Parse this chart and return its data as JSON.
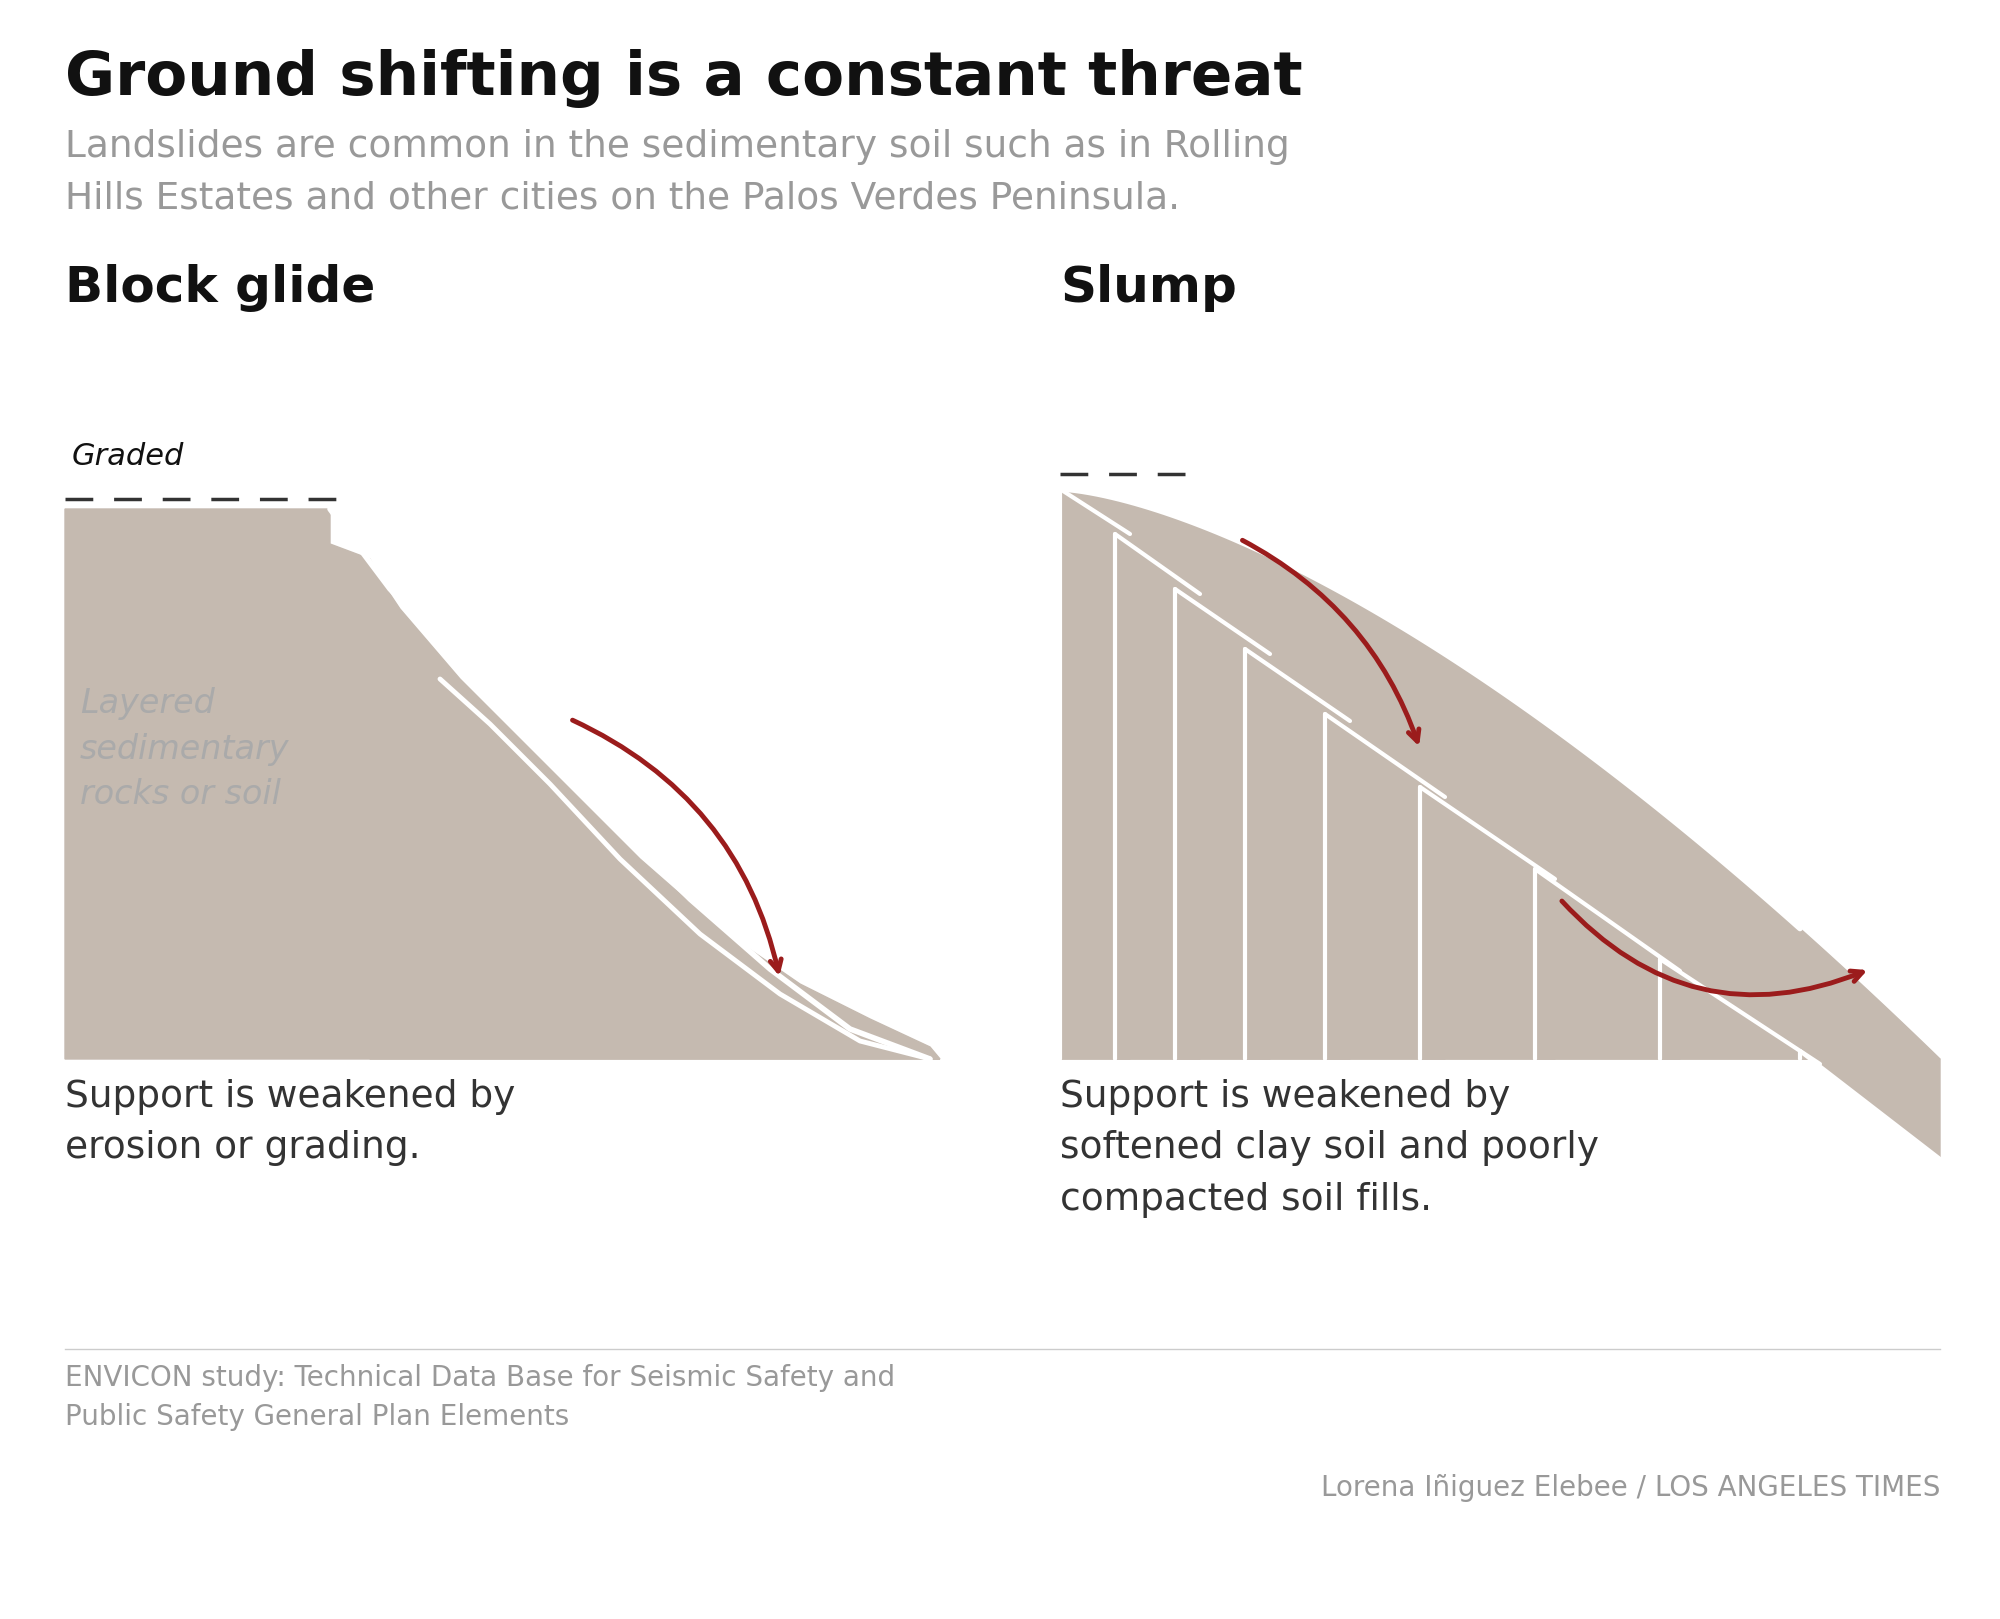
{
  "title": "Ground shifting is a constant threat",
  "subtitle": "Landslides are common in the sedimentary soil such as in Rolling\nHills Estates and other cities on the Palos Verdes Peninsula.",
  "bg_color": "#ffffff",
  "terrain_color": "#c5bab0",
  "arrow_color": "#9b1c1c",
  "white_line_color": "#ffffff",
  "dashed_line_color": "#333333",
  "block_glide_label": "Block glide",
  "slump_label": "Slump",
  "graded_label": "Graded",
  "layered_label": "Layered\nsedimentary\nrocks or soil",
  "block_glide_caption": "Support is weakened by\nerosion or grading.",
  "slump_caption": "Support is weakened by\nsoftened clay soil and poorly\ncompacted soil fills.",
  "source_text": "ENVICON study: Technical Data Base for Seismic Safety and\nPublic Safety General Plan Elements",
  "credit_text": "Lorena Iñiguez Elebee / LOS ANGELES TIMES",
  "title_color": "#111111",
  "subtitle_color": "#999999",
  "label_color": "#aaaaaa",
  "caption_color": "#333333",
  "source_color": "#999999",
  "credit_color": "#999999"
}
